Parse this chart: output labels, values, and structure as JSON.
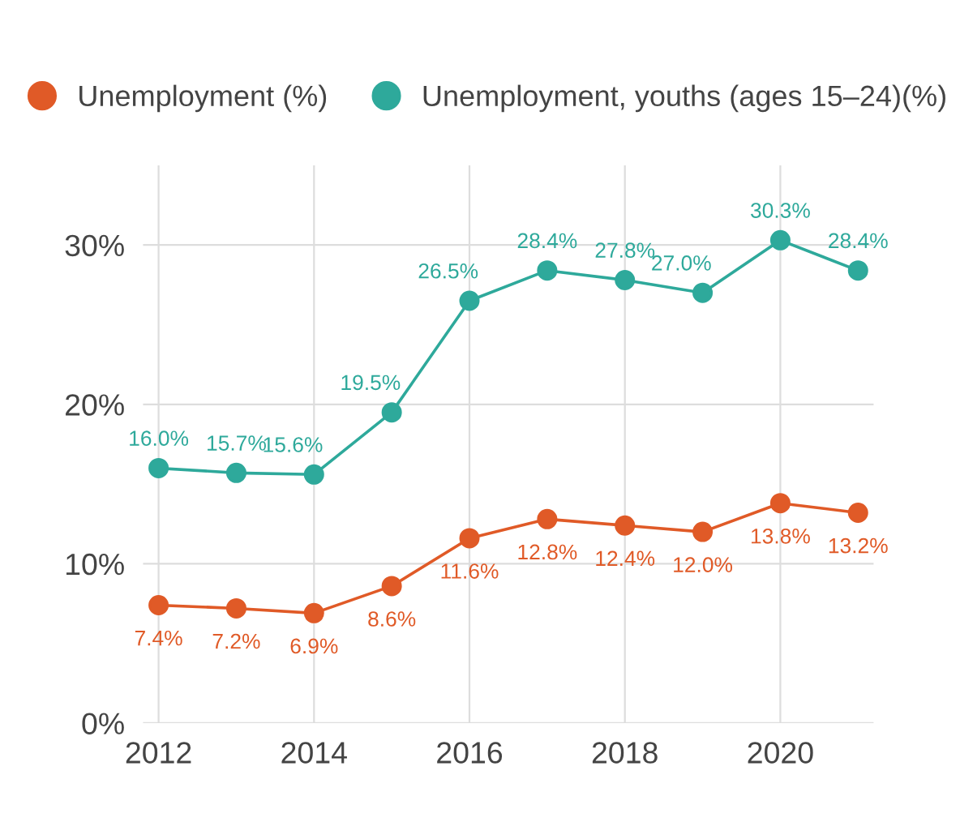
{
  "chart_data": {
    "type": "line",
    "x": [
      2012,
      2013,
      2014,
      2015,
      2016,
      2017,
      2018,
      2019,
      2020,
      2021
    ],
    "series": [
      {
        "name": "Unemployment (%)",
        "color": "#e05a27",
        "values": [
          7.4,
          7.2,
          6.9,
          8.6,
          11.6,
          12.8,
          12.4,
          12.0,
          13.8,
          13.2
        ],
        "value_labels": [
          "7.4%",
          "7.2%",
          "6.9%",
          "8.6%",
          "11.6%",
          "12.8%",
          "12.4%",
          "12.0%",
          "13.8%",
          "13.2%"
        ]
      },
      {
        "name": "Unemployment, youths (ages 15–24)(%)",
        "color": "#2ea99b",
        "values": [
          16.0,
          15.7,
          15.6,
          19.5,
          26.5,
          28.4,
          27.8,
          27.0,
          30.3,
          28.4
        ],
        "value_labels": [
          "16.0%",
          "15.7%",
          "15.6%",
          "19.5%",
          "26.5%",
          "28.4%",
          "27.8%",
          "27.0%",
          "30.3%",
          "28.4%"
        ]
      }
    ],
    "xlim": [
      2011.8,
      2021.2
    ],
    "xticks": [
      2012,
      2014,
      2016,
      2018,
      2020
    ],
    "ylim": [
      0,
      35
    ],
    "yticks": [
      {
        "value": 0,
        "label": "0%"
      },
      {
        "value": 10,
        "label": "10%"
      },
      {
        "value": 20,
        "label": "20%"
      },
      {
        "value": 30,
        "label": "30%"
      }
    ],
    "grid": true,
    "legend": "top",
    "marker": "circle",
    "line_style": "solid"
  }
}
